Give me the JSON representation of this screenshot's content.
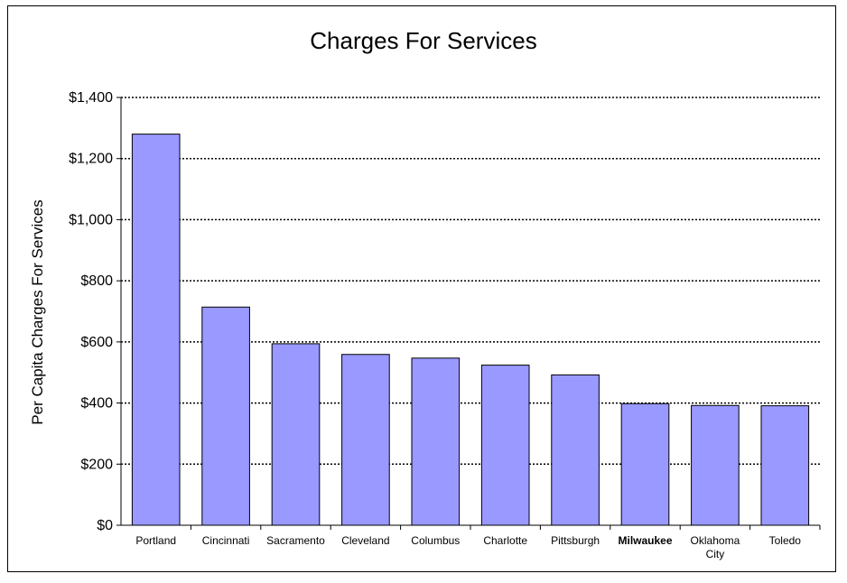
{
  "chart_data": {
    "type": "bar",
    "title": "Charges For Services",
    "ylabel": "Per Capita Charges For Services",
    "xlabel": "",
    "categories": [
      "Portland",
      "Cincinnati",
      "Sacramento",
      "Cleveland",
      "Columbus",
      "Charlotte",
      "Pittsburgh",
      "Milwaukee",
      "Oklahoma City",
      "Toledo"
    ],
    "values": [
      1280,
      714,
      594,
      559,
      547,
      524,
      492,
      398,
      392,
      391
    ],
    "highlight_category": "Milwaukee",
    "ylim": [
      0,
      1400
    ],
    "ytick_labels": [
      "$0",
      "$200",
      "$400",
      "$600",
      "$800",
      "$1,000",
      "$1,200",
      "$1,400"
    ],
    "ytick_values": [
      0,
      200,
      400,
      600,
      800,
      1000,
      1200,
      1400
    ],
    "grid": "horizontal-dotted",
    "legend": "none",
    "bar_color": "#9999ff",
    "bar_edge_color": "#000000"
  }
}
